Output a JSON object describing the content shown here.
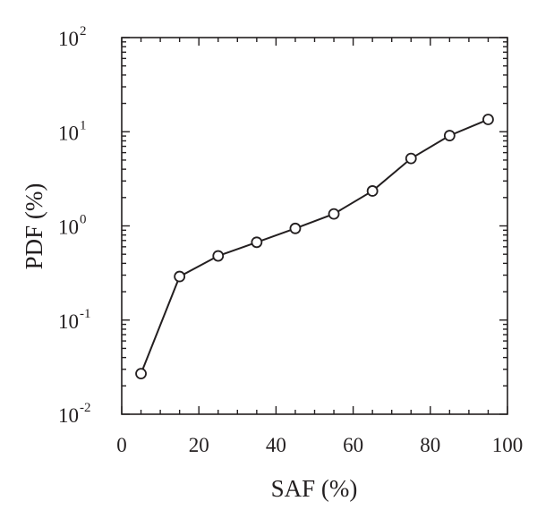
{
  "chart_data": {
    "type": "line",
    "title": "",
    "xlabel": "SAF (%)",
    "ylabel": "PDF (%)",
    "xlim": [
      0,
      100
    ],
    "ylim": [
      0.01,
      100
    ],
    "y_scale": "log",
    "grid": false,
    "marker": "open-circle",
    "x_ticks": [
      0,
      20,
      40,
      60,
      80,
      100
    ],
    "x_tick_labels": [
      "0",
      "20",
      "40",
      "60",
      "80",
      "100"
    ],
    "y_ticks": [
      0.01,
      0.1,
      1,
      10,
      100
    ],
    "y_tick_labels": [
      {
        "base": "10",
        "exp": "-2"
      },
      {
        "base": "10",
        "exp": "-1"
      },
      {
        "base": "10",
        "exp": "0"
      },
      {
        "base": "10",
        "exp": "1"
      },
      {
        "base": "10",
        "exp": "2"
      }
    ],
    "series": [
      {
        "x": [
          5,
          15,
          25,
          35,
          45,
          55,
          65,
          75,
          85,
          95
        ],
        "values": [
          0.027,
          0.29,
          0.48,
          0.67,
          0.94,
          1.34,
          2.35,
          5.2,
          9.1,
          13.5
        ]
      }
    ],
    "colors": {
      "ink": "#231f20"
    }
  }
}
